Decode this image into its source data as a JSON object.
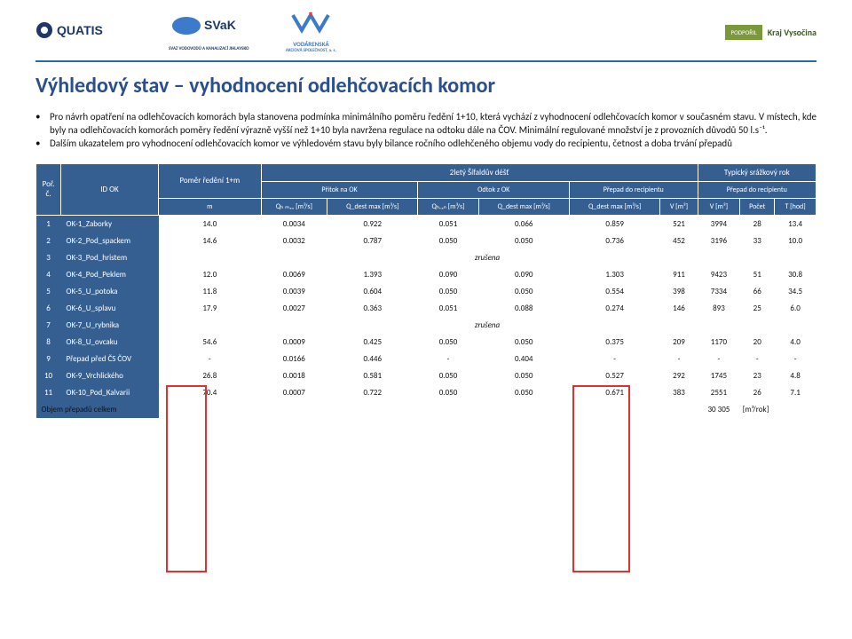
{
  "header": {
    "logo1": "AQUATIS",
    "logo2": "SVaK",
    "logo2_sub": "SVAZ VODOVODŮ A KANALIZACÍ JIHLAVSKO",
    "logo3": "VODÁRENSKÁ",
    "logo3_sub": "AKCIOVÁ SPOLEČNOST, a. s.",
    "sponsor_label": "PODPOŘIL",
    "sponsor": "Kraj Vysočina"
  },
  "title": "Výhledový stav – vyhodnocení odlehčovacích komor",
  "bullets": [
    "Pro návrh opatření na odlehčovacích komorách byla stanovena podmínka minimálního poměru ředění 1+10, která vychází z vyhodnocení odlehčovacích komor v současném stavu. V místech, kde byly na odlehčovacích komorách poměry ředění výrazně vyšší než 1+10 byla navržena regulace na odtoku dále na ČOV. Minimální regulované množství je z provozních důvodů 50 l.s⁻¹.",
    "Dalším ukazatelem pro vyhodnocení odlehčovacích komor ve výhledovém stavu byly bilance ročního odlehčeného objemu vody do recipientu, četnost a doba trvání přepadů"
  ],
  "table": {
    "cols": {
      "por": "Poř. č.",
      "id": "ID OK",
      "pomer": "Poměr ředění 1+m",
      "m": "m",
      "sif": "2letý Šífaldův déšť",
      "typ": "Typický srážkový rok",
      "pritok": "Přítok na OK",
      "odtok": "Odtok z OK",
      "prepad1": "Přepad do recipientu",
      "prepad2": "Přepad do recipientu",
      "qhmax": "Qₕ ₘₐₓ [m³/s]",
      "qdmax1": "Q_dest max [m³/s]",
      "qhran": "Qₕᵣₐₙ [m³/s]",
      "qdmax2": "Q_dest max [m³/s]",
      "qdmax3": "Q_dest max [m³/s]",
      "v1": "V [m³]",
      "v2": "V [m³]",
      "pocet": "Počet",
      "t": "T [hod]"
    },
    "rows": [
      {
        "n": "1",
        "name": "OK-1_Zaborky",
        "m": "14.0",
        "qh": "0.0034",
        "qd1": "0.922",
        "qhr": "0.051",
        "qd2": "0.066",
        "qd3": "0.859",
        "v1": "521",
        "v2": "3994",
        "p": "28",
        "t": "13.4"
      },
      {
        "n": "2",
        "name": "OK-2_Pod_spackem",
        "m": "14.6",
        "qh": "0.0032",
        "qd1": "0.787",
        "qhr": "0.050",
        "qd2": "0.050",
        "qd3": "0.736",
        "v1": "452",
        "v2": "3196",
        "p": "33",
        "t": "10.0"
      },
      {
        "n": "3",
        "name": "OK-3_Pod_hristem",
        "cancelled": "zrušena"
      },
      {
        "n": "4",
        "name": "OK-4_Pod_Peklem",
        "m": "12.0",
        "qh": "0.0069",
        "qd1": "1.393",
        "qhr": "0.090",
        "qd2": "0.090",
        "qd3": "1.303",
        "v1": "911",
        "v2": "9423",
        "p": "51",
        "t": "30.8"
      },
      {
        "n": "5",
        "name": "OK-5_U_potoka",
        "m": "11.8",
        "qh": "0.0039",
        "qd1": "0.604",
        "qhr": "0.050",
        "qd2": "0.050",
        "qd3": "0.554",
        "v1": "398",
        "v2": "7334",
        "p": "66",
        "t": "34.5"
      },
      {
        "n": "6",
        "name": "OK-6_U_splavu",
        "m": "17.9",
        "qh": "0.0027",
        "qd1": "0.363",
        "qhr": "0.051",
        "qd2": "0.088",
        "qd3": "0.274",
        "v1": "146",
        "v2": "893",
        "p": "25",
        "t": "6.0"
      },
      {
        "n": "7",
        "name": "OK-7_U_rybnika",
        "cancelled": "zrušena"
      },
      {
        "n": "8",
        "name": "OK-8_U_ovcaku",
        "m": "54.6",
        "qh": "0.0009",
        "qd1": "0.425",
        "qhr": "0.050",
        "qd2": "0.050",
        "qd3": "0.375",
        "v1": "209",
        "v2": "1170",
        "p": "20",
        "t": "4.0"
      },
      {
        "n": "9",
        "name": "Přepad před ČS ČOV",
        "m": "-",
        "qh": "0.0166",
        "qd1": "0.446",
        "qhr": "-",
        "qd2": "0.404",
        "qd3": "-",
        "v1": "-",
        "v2": "-",
        "p": "-",
        "t": "-"
      },
      {
        "n": "10",
        "name": "OK-9_Vrchlického",
        "m": "26.8",
        "qh": "0.0018",
        "qd1": "0.581",
        "qhr": "0.050",
        "qd2": "0.050",
        "qd3": "0.527",
        "v1": "292",
        "v2": "1745",
        "p": "23",
        "t": "4.8"
      },
      {
        "n": "11",
        "name": "OK-10_Pod_Kalvarii",
        "m": "70.4",
        "qh": "0.0007",
        "qd1": "0.722",
        "qhr": "0.050",
        "qd2": "0.050",
        "qd3": "0.671",
        "v1": "383",
        "v2": "2551",
        "p": "26",
        "t": "7.1"
      }
    ],
    "sum_label": "Objem přepadů celkem",
    "sum_val": "30 305",
    "sum_unit": "[m³/rok]"
  }
}
